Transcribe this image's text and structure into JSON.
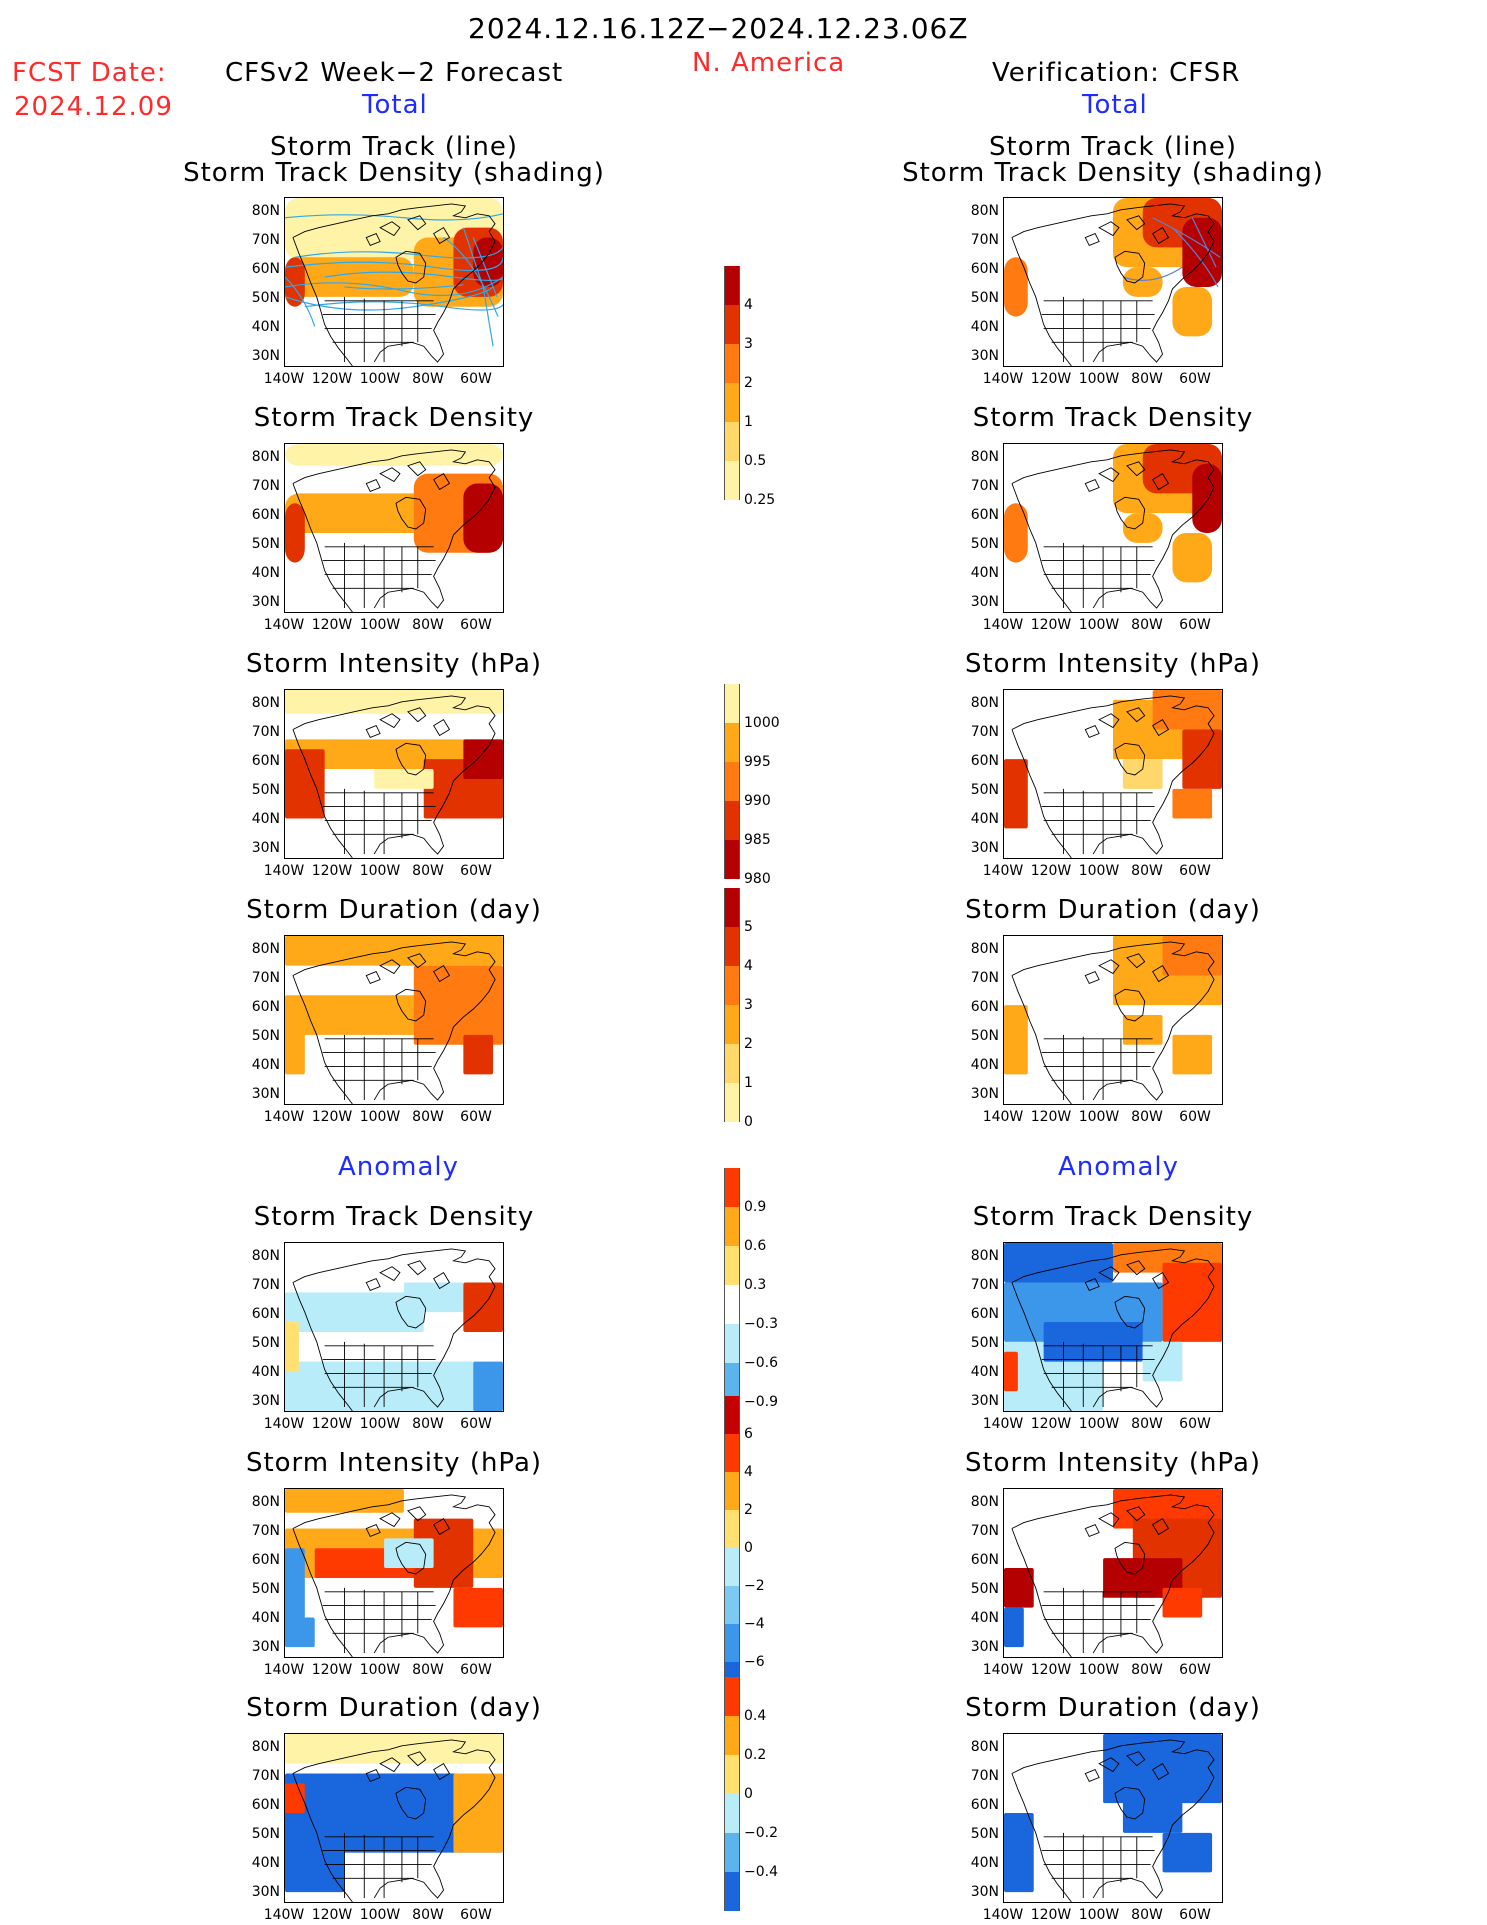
{
  "header": {
    "period": "2024.12.16.12Z−2024.12.23.06Z",
    "region": "N. America",
    "fcst_date_label": "FCST Date:",
    "fcst_date": "2024.12.09",
    "model_title": "CFSv2 Week−2 Forecast",
    "verif_title": "Verification: CFSR",
    "total_label": "Total",
    "anomaly_label": "Anomaly"
  },
  "panel_titles": {
    "track_line": "Storm Track (line)",
    "track_density_shading": "Storm Track Density (shading)",
    "track_density": "Storm Track Density",
    "intensity": "Storm Intensity (hPa)",
    "duration": "Storm Duration (day)"
  },
  "lat_ticks": [
    "80N",
    "70N",
    "60N",
    "50N",
    "40N",
    "30N"
  ],
  "lon_ticks": [
    "140W",
    "120W",
    "100W",
    "80W",
    "60W"
  ],
  "colorbars": {
    "density": {
      "labels": [
        "4",
        "3",
        "2",
        "1",
        "0.5",
        "0.25"
      ],
      "colors": [
        "#b40000",
        "#e23200",
        "#ff7a10",
        "#ffa818",
        "#ffd76a",
        "#fff3a8"
      ]
    },
    "intensity": {
      "labels": [
        "1000",
        "995",
        "990",
        "985",
        "980"
      ],
      "colors": [
        "#fff3a8",
        "#ffa818",
        "#ff7a10",
        "#e23200",
        "#b40000"
      ]
    },
    "duration": {
      "labels": [
        "5",
        "4",
        "3",
        "2",
        "1",
        "0"
      ],
      "colors": [
        "#b40000",
        "#e23200",
        "#ff7a10",
        "#ffa818",
        "#ffd76a",
        "#fff3a8"
      ]
    },
    "density_anom": {
      "labels": [
        "0.9",
        "0.6",
        "0.3",
        "−0.3",
        "−0.6",
        "−0.9"
      ],
      "colors": [
        "#ff3a00",
        "#ffa818",
        "#ffe070",
        "#ffffff",
        "#b8ecf8",
        "#5cb4ee",
        "#1a66dd"
      ]
    },
    "intensity_anom": {
      "labels": [
        "6",
        "4",
        "2",
        "0",
        "−2",
        "−4",
        "−6"
      ],
      "colors": [
        "#c40000",
        "#ff3a00",
        "#ffa818",
        "#ffe070",
        "#b8ecf8",
        "#7ccaf4",
        "#3c96ea",
        "#1a66dd"
      ]
    },
    "duration_anom": {
      "labels": [
        "0.4",
        "0.2",
        "0",
        "−0.2",
        "−0.4"
      ],
      "colors": [
        "#ff3a00",
        "#ffa818",
        "#ffe070",
        "#b8ecf8",
        "#5cb4ee",
        "#1a66dd"
      ]
    }
  }
}
